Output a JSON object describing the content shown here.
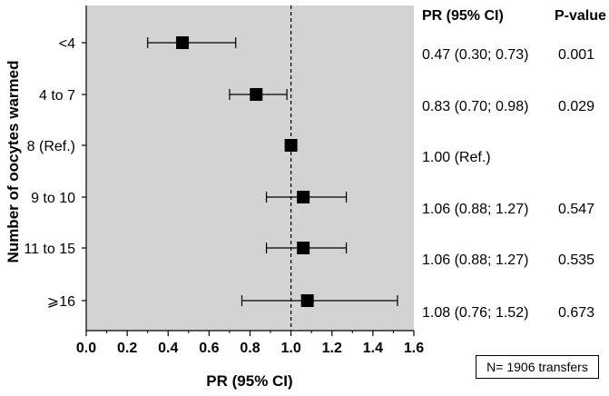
{
  "chart_data": {
    "type": "forest",
    "xlabel": "PR (95% CI)",
    "ylabel": "Number of oocytes warmed",
    "xlim": [
      0,
      1.6
    ],
    "x_ticks": [
      "0.0",
      "0.2",
      "0.4",
      "0.6",
      "0.8",
      "1.0",
      "1.2",
      "1.4",
      "1.6"
    ],
    "reference_line": 1.0,
    "grid": false,
    "background": "#d3d3d3",
    "categories": [
      "<4",
      "4 to 7",
      "8 (Ref.)",
      "9 to 10",
      "11 to 15",
      "⩾16"
    ],
    "estimates": [
      0.47,
      0.83,
      1.0,
      1.06,
      1.06,
      1.08
    ],
    "ci_low": [
      0.3,
      0.7,
      null,
      0.88,
      0.88,
      0.76
    ],
    "ci_high": [
      0.73,
      0.98,
      null,
      1.27,
      1.27,
      1.52
    ],
    "table_headers": [
      "PR (95% CI)",
      "P-value"
    ],
    "pr_text": [
      "0.47 (0.30; 0.73)",
      "0.83 (0.70; 0.98)",
      "1.00 (Ref.)",
      "1.06 (0.88; 1.27)",
      "1.06 (0.88; 1.27)",
      "1.08 (0.76; 1.52)"
    ],
    "p_values": [
      "0.001",
      "0.029",
      "",
      "0.547",
      "0.535",
      "0.673"
    ],
    "note": "N= 1906 transfers"
  }
}
